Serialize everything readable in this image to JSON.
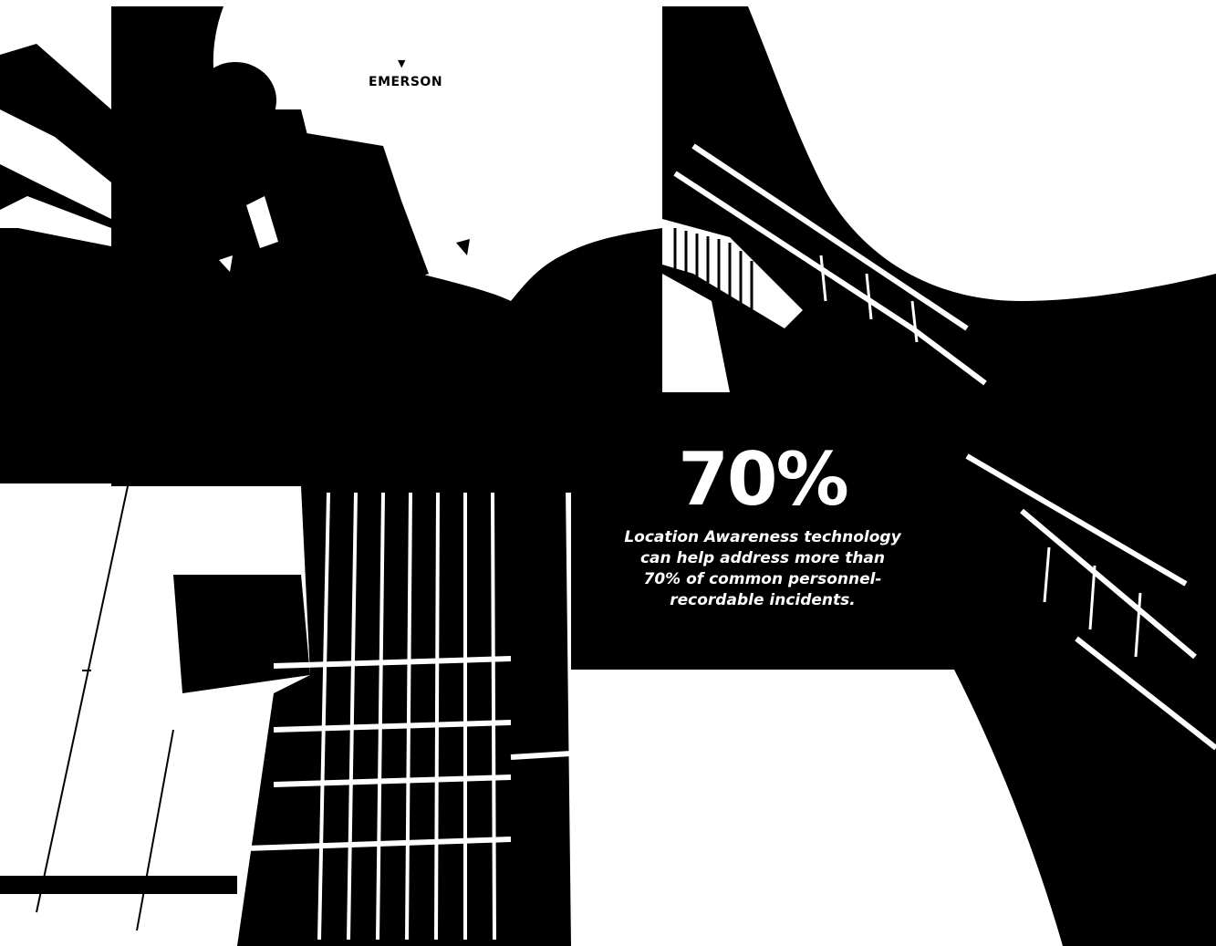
{
  "brand": {
    "logo_text": "EMERSON"
  },
  "stat": {
    "value": "70%",
    "caption_lines": [
      "Location Awareness technology",
      "can help address more than",
      "70% of common personnel-",
      "recordable incidents."
    ]
  },
  "colors": {
    "ink": "#000000",
    "paper": "#ffffff"
  }
}
